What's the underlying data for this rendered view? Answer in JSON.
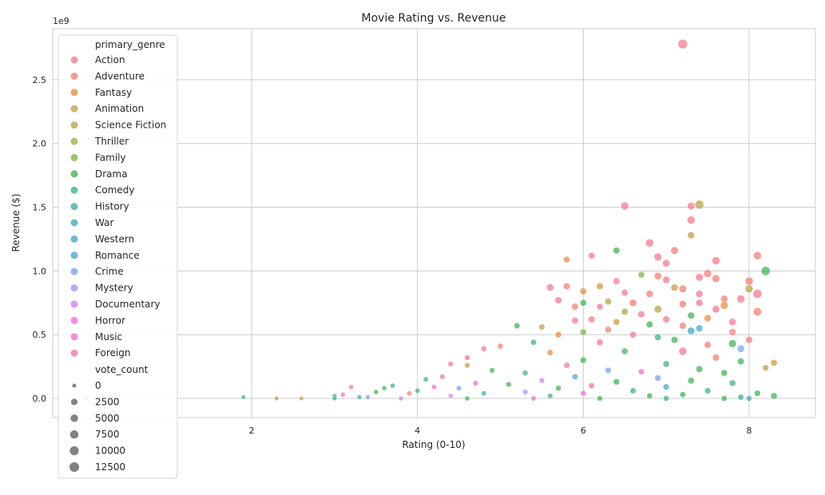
{
  "chart_data": {
    "type": "scatter",
    "title": "Movie Rating vs. Revenue",
    "xlabel": "Rating (0-10)",
    "ylabel": "Revenue ($)",
    "y_offset_label": "1e9",
    "xlim": [
      -0.4,
      8.8
    ],
    "ylim": [
      -0.15,
      2.9
    ],
    "x_ticks": [
      2,
      4,
      6,
      8
    ],
    "x_tick_labels": [
      "2",
      "4",
      "6",
      "8"
    ],
    "y_ticks": [
      0.0,
      0.5,
      1.0,
      1.5,
      2.0,
      2.5
    ],
    "y_tick_labels": [
      "0.0",
      "0.5",
      "1.0",
      "1.5",
      "2.0",
      "2.5"
    ],
    "grid": true,
    "legend_placement": "left",
    "hue_title": "primary_genre",
    "size_title": "vote_count",
    "genres": [
      {
        "name": "Action",
        "color": "#f77189"
      },
      {
        "name": "Adventure",
        "color": "#f3776b"
      },
      {
        "name": "Fantasy",
        "color": "#e0893d"
      },
      {
        "name": "Animation",
        "color": "#c8963a"
      },
      {
        "name": "Science Fiction",
        "color": "#b6a03a"
      },
      {
        "name": "Thriller",
        "color": "#a2a73a"
      },
      {
        "name": "Family",
        "color": "#78b13a"
      },
      {
        "name": "Drama",
        "color": "#33b24a"
      },
      {
        "name": "Comedy",
        "color": "#36ad8a"
      },
      {
        "name": "History",
        "color": "#38aaa2"
      },
      {
        "name": "War",
        "color": "#39a6b4"
      },
      {
        "name": "Western",
        "color": "#3aa4c2"
      },
      {
        "name": "Romance",
        "color": "#3ba3cf"
      },
      {
        "name": "Crime",
        "color": "#6f9ff0"
      },
      {
        "name": "Mystery",
        "color": "#a38ef4"
      },
      {
        "name": "Documentary",
        "color": "#cc7af4"
      },
      {
        "name": "Horror",
        "color": "#f461dd"
      },
      {
        "name": "Music",
        "color": "#f565c8"
      },
      {
        "name": "Foreign",
        "color": "#f66bad"
      }
    ],
    "size_legend": [
      {
        "label": "0",
        "value": 0
      },
      {
        "label": "2500",
        "value": 2500
      },
      {
        "label": "5000",
        "value": 5000
      },
      {
        "label": "7500",
        "value": 7500
      },
      {
        "label": "10000",
        "value": 10000
      },
      {
        "label": "12500",
        "value": 12500
      }
    ],
    "points": [
      {
        "x": 7.2,
        "y": 2.78,
        "genre": "Action",
        "votes": 12000
      },
      {
        "x": 7.4,
        "y": 1.52,
        "genre": "Science Fiction",
        "votes": 9500
      },
      {
        "x": 6.5,
        "y": 1.51,
        "genre": "Action",
        "votes": 6000
      },
      {
        "x": 7.3,
        "y": 1.51,
        "genre": "Action",
        "votes": 4500
      },
      {
        "x": 7.3,
        "y": 1.4,
        "genre": "Action",
        "votes": 6000
      },
      {
        "x": 7.3,
        "y": 1.28,
        "genre": "Animation",
        "votes": 3500
      },
      {
        "x": 6.8,
        "y": 1.22,
        "genre": "Action",
        "votes": 6500
      },
      {
        "x": 7.1,
        "y": 1.16,
        "genre": "Adventure",
        "votes": 5000
      },
      {
        "x": 6.4,
        "y": 1.16,
        "genre": "Drama",
        "votes": 3000
      },
      {
        "x": 6.1,
        "y": 1.12,
        "genre": "Action",
        "votes": 2500
      },
      {
        "x": 6.9,
        "y": 1.11,
        "genre": "Action",
        "votes": 5500
      },
      {
        "x": 8.1,
        "y": 1.12,
        "genre": "Adventure",
        "votes": 6500
      },
      {
        "x": 7.6,
        "y": 1.08,
        "genre": "Action",
        "votes": 6500
      },
      {
        "x": 5.8,
        "y": 1.09,
        "genre": "Fantasy",
        "votes": 2500
      },
      {
        "x": 7.0,
        "y": 1.06,
        "genre": "Action",
        "votes": 4500
      },
      {
        "x": 8.2,
        "y": 1.0,
        "genre": "Drama",
        "votes": 10000
      },
      {
        "x": 7.5,
        "y": 0.98,
        "genre": "Adventure",
        "votes": 6000
      },
      {
        "x": 6.7,
        "y": 0.97,
        "genre": "Family",
        "votes": 2500
      },
      {
        "x": 6.9,
        "y": 0.96,
        "genre": "Adventure",
        "votes": 4500
      },
      {
        "x": 7.4,
        "y": 0.95,
        "genre": "Action",
        "votes": 5000
      },
      {
        "x": 8.0,
        "y": 0.92,
        "genre": "Adventure",
        "votes": 7000
      },
      {
        "x": 7.6,
        "y": 0.94,
        "genre": "Adventure",
        "votes": 5500
      },
      {
        "x": 7.0,
        "y": 0.93,
        "genre": "Action",
        "votes": 4000
      },
      {
        "x": 6.4,
        "y": 0.92,
        "genre": "Action",
        "votes": 3000
      },
      {
        "x": 5.8,
        "y": 0.88,
        "genre": "Adventure",
        "votes": 3000
      },
      {
        "x": 5.6,
        "y": 0.87,
        "genre": "Action",
        "votes": 4000
      },
      {
        "x": 6.2,
        "y": 0.88,
        "genre": "Animation",
        "votes": 3000
      },
      {
        "x": 7.1,
        "y": 0.87,
        "genre": "Animation",
        "votes": 4000
      },
      {
        "x": 8.0,
        "y": 0.86,
        "genre": "Science Fiction",
        "votes": 6000
      },
      {
        "x": 7.2,
        "y": 0.86,
        "genre": "Adventure",
        "votes": 5000
      },
      {
        "x": 6.0,
        "y": 0.84,
        "genre": "Fantasy",
        "votes": 3000
      },
      {
        "x": 6.5,
        "y": 0.83,
        "genre": "Action",
        "votes": 3000
      },
      {
        "x": 7.4,
        "y": 0.82,
        "genre": "Action",
        "votes": 4000
      },
      {
        "x": 8.1,
        "y": 0.82,
        "genre": "Action",
        "votes": 9500
      },
      {
        "x": 6.8,
        "y": 0.82,
        "genre": "Adventure",
        "votes": 4000
      },
      {
        "x": 7.9,
        "y": 0.78,
        "genre": "Action",
        "votes": 6500
      },
      {
        "x": 7.7,
        "y": 0.78,
        "genre": "Adventure",
        "votes": 4500
      },
      {
        "x": 5.7,
        "y": 0.77,
        "genre": "Action",
        "votes": 3500
      },
      {
        "x": 6.3,
        "y": 0.76,
        "genre": "Science Fiction",
        "votes": 3000
      },
      {
        "x": 6.0,
        "y": 0.75,
        "genre": "Drama",
        "votes": 2500
      },
      {
        "x": 6.6,
        "y": 0.75,
        "genre": "Adventure",
        "votes": 4500
      },
      {
        "x": 7.4,
        "y": 0.75,
        "genre": "Action",
        "votes": 3500
      },
      {
        "x": 7.2,
        "y": 0.74,
        "genre": "Adventure",
        "votes": 4000
      },
      {
        "x": 7.7,
        "y": 0.73,
        "genre": "Fantasy",
        "votes": 5500
      },
      {
        "x": 6.2,
        "y": 0.72,
        "genre": "Action",
        "votes": 2500
      },
      {
        "x": 5.9,
        "y": 0.72,
        "genre": "Adventure",
        "votes": 3000
      },
      {
        "x": 6.9,
        "y": 0.7,
        "genre": "Science Fiction",
        "votes": 5000
      },
      {
        "x": 7.6,
        "y": 0.7,
        "genre": "Action",
        "votes": 4500
      },
      {
        "x": 8.1,
        "y": 0.68,
        "genre": "Adventure",
        "votes": 7500
      },
      {
        "x": 6.5,
        "y": 0.68,
        "genre": "Thriller",
        "votes": 3000
      },
      {
        "x": 6.7,
        "y": 0.66,
        "genre": "Action",
        "votes": 3500
      },
      {
        "x": 7.3,
        "y": 0.65,
        "genre": "Drama",
        "votes": 3500
      },
      {
        "x": 7.5,
        "y": 0.63,
        "genre": "Fantasy",
        "votes": 4000
      },
      {
        "x": 6.1,
        "y": 0.62,
        "genre": "Adventure",
        "votes": 3000
      },
      {
        "x": 5.9,
        "y": 0.61,
        "genre": "Action",
        "votes": 3000
      },
      {
        "x": 7.0,
        "y": 0.62,
        "genre": "Action",
        "votes": 3500
      },
      {
        "x": 6.4,
        "y": 0.6,
        "genre": "Animation",
        "votes": 2500
      },
      {
        "x": 7.8,
        "y": 0.6,
        "genre": "Action",
        "votes": 4000
      },
      {
        "x": 6.8,
        "y": 0.58,
        "genre": "Drama",
        "votes": 3000
      },
      {
        "x": 5.2,
        "y": 0.57,
        "genre": "Drama",
        "votes": 1500
      },
      {
        "x": 5.5,
        "y": 0.56,
        "genre": "Animation",
        "votes": 1500
      },
      {
        "x": 7.2,
        "y": 0.57,
        "genre": "Adventure",
        "votes": 3500
      },
      {
        "x": 7.4,
        "y": 0.55,
        "genre": "Romance",
        "votes": 3500
      },
      {
        "x": 6.3,
        "y": 0.54,
        "genre": "Adventure",
        "votes": 2500
      },
      {
        "x": 7.3,
        "y": 0.53,
        "genre": "Western",
        "votes": 4500
      },
      {
        "x": 6.0,
        "y": 0.52,
        "genre": "Family",
        "votes": 2500
      },
      {
        "x": 7.8,
        "y": 0.52,
        "genre": "Adventure",
        "votes": 3500
      },
      {
        "x": 6.6,
        "y": 0.5,
        "genre": "Action",
        "votes": 2500
      },
      {
        "x": 5.7,
        "y": 0.5,
        "genre": "Fantasy",
        "votes": 2000
      },
      {
        "x": 6.9,
        "y": 0.48,
        "genre": "Comedy",
        "votes": 3000
      },
      {
        "x": 8.0,
        "y": 0.46,
        "genre": "Action",
        "votes": 3500
      },
      {
        "x": 7.1,
        "y": 0.46,
        "genre": "Drama",
        "votes": 3000
      },
      {
        "x": 7.8,
        "y": 0.43,
        "genre": "Drama",
        "votes": 5500
      },
      {
        "x": 5.4,
        "y": 0.44,
        "genre": "Comedy",
        "votes": 1500
      },
      {
        "x": 6.2,
        "y": 0.44,
        "genre": "Action",
        "votes": 2500
      },
      {
        "x": 7.5,
        "y": 0.42,
        "genre": "Adventure",
        "votes": 3000
      },
      {
        "x": 5.0,
        "y": 0.41,
        "genre": "Adventure",
        "votes": 1200
      },
      {
        "x": 7.9,
        "y": 0.39,
        "genre": "Crime",
        "votes": 4500
      },
      {
        "x": 4.8,
        "y": 0.39,
        "genre": "Action",
        "votes": 1000
      },
      {
        "x": 7.2,
        "y": 0.37,
        "genre": "Action",
        "votes": 6000
      },
      {
        "x": 6.5,
        "y": 0.37,
        "genre": "Drama",
        "votes": 2500
      },
      {
        "x": 5.6,
        "y": 0.36,
        "genre": "Fantasy",
        "votes": 1500
      },
      {
        "x": 4.6,
        "y": 0.32,
        "genre": "Action",
        "votes": 1000
      },
      {
        "x": 7.6,
        "y": 0.32,
        "genre": "Adventure",
        "votes": 3500
      },
      {
        "x": 6.0,
        "y": 0.3,
        "genre": "Drama",
        "votes": 2000
      },
      {
        "x": 7.9,
        "y": 0.29,
        "genre": "Drama",
        "votes": 3000
      },
      {
        "x": 8.3,
        "y": 0.28,
        "genre": "Animation",
        "votes": 2500
      },
      {
        "x": 4.4,
        "y": 0.27,
        "genre": "Action",
        "votes": 800
      },
      {
        "x": 7.0,
        "y": 0.27,
        "genre": "Comedy",
        "votes": 2500
      },
      {
        "x": 5.8,
        "y": 0.26,
        "genre": "Action",
        "votes": 1500
      },
      {
        "x": 4.6,
        "y": 0.26,
        "genre": "Animation",
        "votes": 800
      },
      {
        "x": 8.2,
        "y": 0.24,
        "genre": "Animation",
        "votes": 2000
      },
      {
        "x": 7.4,
        "y": 0.23,
        "genre": "Drama",
        "votes": 3000
      },
      {
        "x": 6.3,
        "y": 0.22,
        "genre": "Crime",
        "votes": 2000
      },
      {
        "x": 4.9,
        "y": 0.22,
        "genre": "Drama",
        "votes": 800
      },
      {
        "x": 6.7,
        "y": 0.21,
        "genre": "Horror",
        "votes": 1500
      },
      {
        "x": 5.3,
        "y": 0.2,
        "genre": "Comedy",
        "votes": 1000
      },
      {
        "x": 7.7,
        "y": 0.2,
        "genre": "Drama",
        "votes": 2500
      },
      {
        "x": 4.3,
        "y": 0.17,
        "genre": "Action",
        "votes": 600
      },
      {
        "x": 5.9,
        "y": 0.17,
        "genre": "Romance",
        "votes": 1500
      },
      {
        "x": 6.9,
        "y": 0.16,
        "genre": "Crime",
        "votes": 2000
      },
      {
        "x": 4.1,
        "y": 0.15,
        "genre": "Comedy",
        "votes": 500
      },
      {
        "x": 7.3,
        "y": 0.14,
        "genre": "Drama",
        "votes": 2500
      },
      {
        "x": 5.5,
        "y": 0.14,
        "genre": "Documentary",
        "votes": 800
      },
      {
        "x": 6.4,
        "y": 0.13,
        "genre": "Drama",
        "votes": 2000
      },
      {
        "x": 4.7,
        "y": 0.12,
        "genre": "Horror",
        "votes": 600
      },
      {
        "x": 7.8,
        "y": 0.12,
        "genre": "Comedy",
        "votes": 2500
      },
      {
        "x": 5.1,
        "y": 0.11,
        "genre": "Drama",
        "votes": 700
      },
      {
        "x": 3.7,
        "y": 0.1,
        "genre": "Comedy",
        "votes": 300
      },
      {
        "x": 6.1,
        "y": 0.1,
        "genre": "Action",
        "votes": 1500
      },
      {
        "x": 3.2,
        "y": 0.09,
        "genre": "Foreign",
        "votes": 300
      },
      {
        "x": 4.2,
        "y": 0.09,
        "genre": "Horror",
        "votes": 400
      },
      {
        "x": 7.0,
        "y": 0.09,
        "genre": "Romance",
        "votes": 2000
      },
      {
        "x": 3.6,
        "y": 0.08,
        "genre": "Drama",
        "votes": 300
      },
      {
        "x": 4.5,
        "y": 0.08,
        "genre": "Crime",
        "votes": 500
      },
      {
        "x": 5.7,
        "y": 0.08,
        "genre": "Drama",
        "votes": 1000
      },
      {
        "x": 8.1,
        "y": 0.04,
        "genre": "Drama",
        "votes": 2000
      },
      {
        "x": 3.5,
        "y": 0.05,
        "genre": "Drama",
        "votes": 300
      },
      {
        "x": 6.6,
        "y": 0.06,
        "genre": "Comedy",
        "votes": 1500
      },
      {
        "x": 7.5,
        "y": 0.06,
        "genre": "History",
        "votes": 2000
      },
      {
        "x": 4.0,
        "y": 0.06,
        "genre": "Comedy",
        "votes": 400
      },
      {
        "x": 5.3,
        "y": 0.05,
        "genre": "Mystery",
        "votes": 700
      },
      {
        "x": 3.9,
        "y": 0.04,
        "genre": "Action",
        "votes": 400
      },
      {
        "x": 4.8,
        "y": 0.04,
        "genre": "Comedy",
        "votes": 500
      },
      {
        "x": 6.0,
        "y": 0.04,
        "genre": "Horror",
        "votes": 1000
      },
      {
        "x": 7.2,
        "y": 0.03,
        "genre": "Drama",
        "votes": 1500
      },
      {
        "x": 3.1,
        "y": 0.03,
        "genre": "Foreign",
        "votes": 200
      },
      {
        "x": 3.0,
        "y": 0.02,
        "genre": "Comedy",
        "votes": 200
      },
      {
        "x": 8.3,
        "y": 0.02,
        "genre": "Drama",
        "votes": 2500
      },
      {
        "x": 4.4,
        "y": 0.02,
        "genre": "Documentary",
        "votes": 300
      },
      {
        "x": 5.6,
        "y": 0.02,
        "genre": "Comedy",
        "votes": 700
      },
      {
        "x": 6.8,
        "y": 0.02,
        "genre": "Drama",
        "votes": 1200
      },
      {
        "x": 3.3,
        "y": 0.01,
        "genre": "Comedy",
        "votes": 200
      },
      {
        "x": 7.9,
        "y": 0.01,
        "genre": "Comedy",
        "votes": 1500
      },
      {
        "x": 3.4,
        "y": 0.01,
        "genre": "Crime",
        "votes": 200
      },
      {
        "x": 1.9,
        "y": 0.01,
        "genre": "Comedy",
        "votes": 50
      },
      {
        "x": 2.3,
        "y": 0.0,
        "genre": "Animation",
        "votes": 50
      },
      {
        "x": 2.6,
        "y": 0.0,
        "genre": "Animation",
        "votes": 50
      },
      {
        "x": 3.0,
        "y": 0.0,
        "genre": "Drama",
        "votes": 100
      },
      {
        "x": 3.8,
        "y": 0.0,
        "genre": "Documentary",
        "votes": 200
      },
      {
        "x": 4.6,
        "y": 0.0,
        "genre": "Drama",
        "votes": 300
      },
      {
        "x": 5.4,
        "y": 0.0,
        "genre": "Music",
        "votes": 500
      },
      {
        "x": 6.2,
        "y": 0.0,
        "genre": "Drama",
        "votes": 800
      },
      {
        "x": 7.0,
        "y": 0.0,
        "genre": "Comedy",
        "votes": 1000
      },
      {
        "x": 7.7,
        "y": 0.0,
        "genre": "Drama",
        "votes": 1200
      },
      {
        "x": 8.0,
        "y": 0.0,
        "genre": "Western",
        "votes": 1000
      },
      {
        "x": 0.0,
        "y": 0.0,
        "genre": "Drama",
        "votes": 0
      }
    ]
  }
}
